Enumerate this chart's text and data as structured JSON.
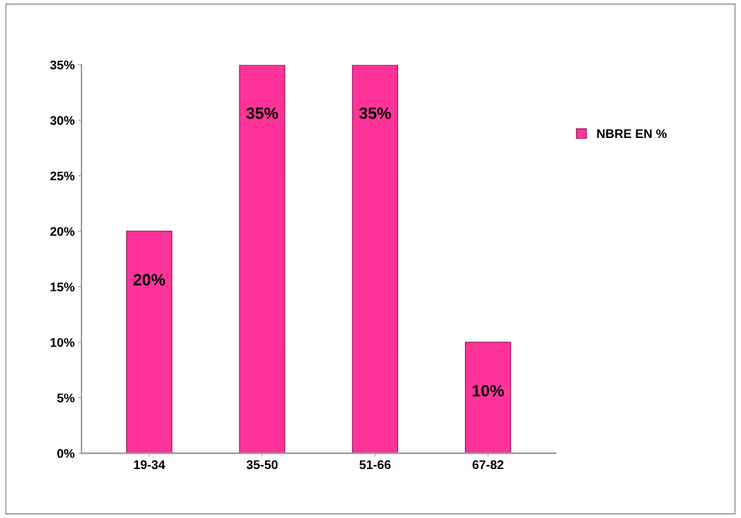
{
  "chart_data": {
    "type": "bar",
    "categories": [
      "19-34",
      "35-50",
      "51-66",
      "67-82"
    ],
    "series": [
      {
        "name": "NBRE EN %",
        "color": "#ff3399",
        "values": [
          20,
          35,
          35,
          10
        ],
        "value_labels": [
          "20%",
          "35%",
          "35%",
          "10%"
        ]
      }
    ],
    "ylim": [
      0,
      35
    ],
    "yticks": [
      {
        "value": 0,
        "label": "0%"
      },
      {
        "value": 5,
        "label": "5%"
      },
      {
        "value": 10,
        "label": "10%"
      },
      {
        "value": 15,
        "label": "15%"
      },
      {
        "value": 20,
        "label": "20%"
      },
      {
        "value": 25,
        "label": "25%"
      },
      {
        "value": 30,
        "label": "30%"
      },
      {
        "value": 35,
        "label": "35%"
      }
    ],
    "grid": false,
    "legend": "right"
  }
}
